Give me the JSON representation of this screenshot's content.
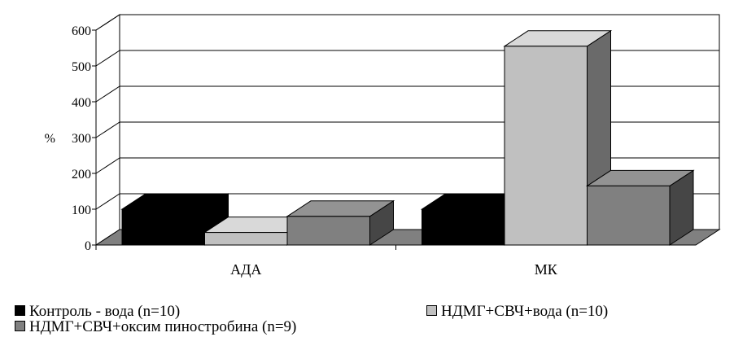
{
  "chart_data": {
    "type": "bar",
    "style": "3d-clustered-column",
    "categories": [
      "АДА",
      "МК"
    ],
    "ylabel": "%",
    "ylim": [
      0,
      600
    ],
    "yticks": [
      0,
      100,
      200,
      300,
      400,
      500,
      600
    ],
    "grid": true,
    "legend_position": "bottom",
    "series": [
      {
        "name": "Контроль - вода (n=10)",
        "values": [
          100,
          100
        ],
        "color": "#000000"
      },
      {
        "name": "НДМГ+СВЧ+вода (n=10)",
        "values": [
          35,
          555
        ],
        "color": "#c0c0c0"
      },
      {
        "name": "НДМГ+СВЧ+оксим пиностробина (n=9)",
        "values": [
          80,
          165
        ],
        "color": "#808080"
      }
    ]
  }
}
